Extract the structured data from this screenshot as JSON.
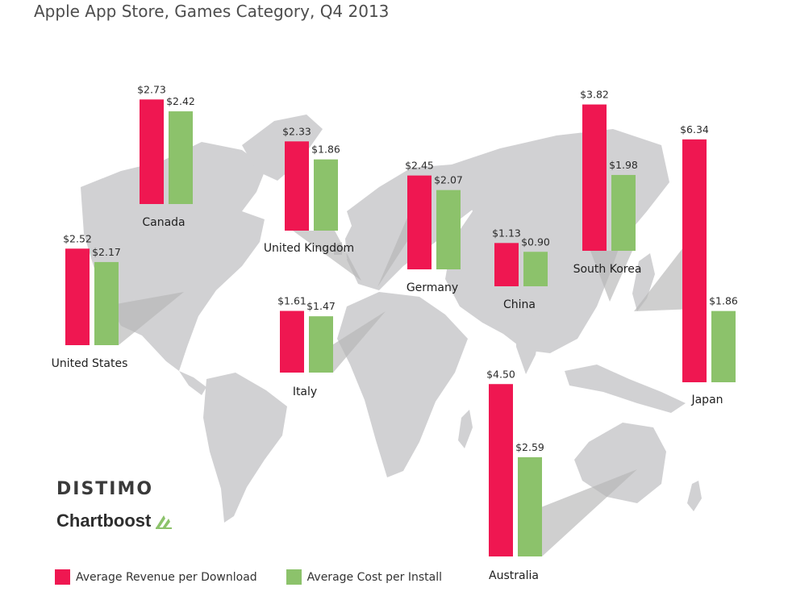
{
  "title": "Apple App Store, Games Category, Q4 2013",
  "colors": {
    "revenue": "#ef1751",
    "cost": "#8cc26b",
    "land": "#d1d1d3",
    "pointer": "#b5b5b5"
  },
  "legend": {
    "revenue": "Average Revenue per Download",
    "cost": "Average Cost per Install"
  },
  "logos": {
    "distimo": "DISTIMO",
    "chartboost": "Chartboost"
  },
  "chart_data": {
    "type": "bar",
    "title": "Apple App Store, Games Category, Q4 2013",
    "categories": [
      "United States",
      "Canada",
      "United Kingdom",
      "Germany",
      "Italy",
      "China",
      "South Korea",
      "Australia",
      "Japan"
    ],
    "series": [
      {
        "name": "Average Revenue per Download",
        "values": [
          2.52,
          2.73,
          2.33,
          2.45,
          1.61,
          1.13,
          3.82,
          4.5,
          6.34
        ],
        "labels": [
          "$2.52",
          "$2.73",
          "$2.33",
          "$2.45",
          "$1.61",
          "$1.13",
          "$3.82",
          "$4.50",
          "$6.34"
        ]
      },
      {
        "name": "Average Cost per Install",
        "values": [
          2.17,
          2.42,
          1.86,
          2.07,
          1.47,
          0.9,
          1.98,
          2.59,
          1.86
        ],
        "labels": [
          "$2.17",
          "$2.42",
          "$1.86",
          "$2.07",
          "$1.47",
          "$0.90",
          "$1.98",
          "$2.59",
          "$1.86"
        ]
      }
    ],
    "grid": false,
    "legend_position": "bottom-left"
  }
}
